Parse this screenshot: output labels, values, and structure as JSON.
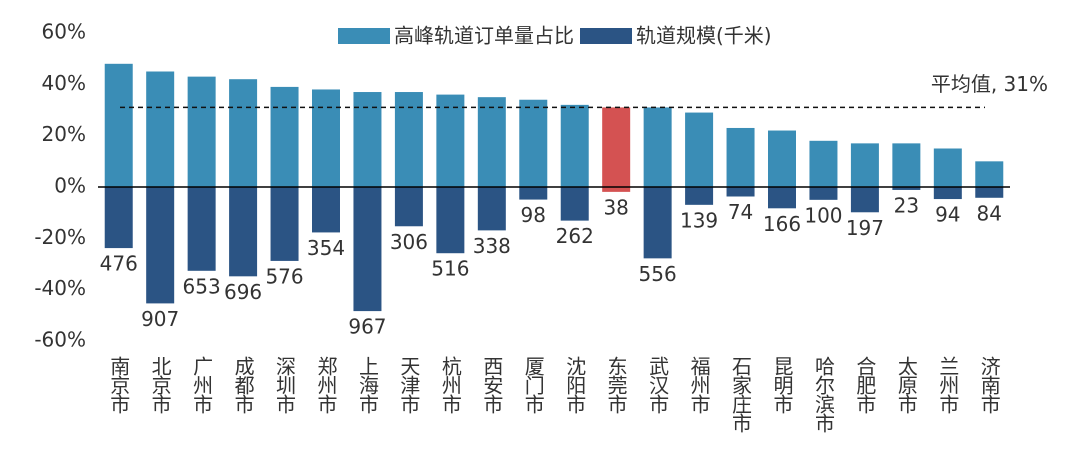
{
  "chart_data": {
    "type": "bar",
    "categories": [
      "南京市",
      "北京市",
      "广州市",
      "成都市",
      "深圳市",
      "郑州市",
      "上海市",
      "天津市",
      "杭州市",
      "西安市",
      "厦门市",
      "沈阳市",
      "东莞市",
      "武汉市",
      "福州市",
      "石家庄市",
      "昆明市",
      "哈尔滨市",
      "合肥市",
      "太原市",
      "兰州市",
      "济南市"
    ],
    "series": [
      {
        "name": "高峰轨道订单量占比",
        "color": "#3a8db6",
        "colors": [
          "#3a8db6",
          "#3a8db6",
          "#3a8db6",
          "#3a8db6",
          "#3a8db6",
          "#3a8db6",
          "#3a8db6",
          "#3a8db6",
          "#3a8db6",
          "#3a8db6",
          "#3a8db6",
          "#3a8db6",
          "#d45252",
          "#3a8db6",
          "#3a8db6",
          "#3a8db6",
          "#3a8db6",
          "#3a8db6",
          "#3a8db6",
          "#3a8db6",
          "#3a8db6",
          "#3a8db6"
        ],
        "values": [
          48,
          45,
          43,
          42,
          39,
          38,
          37,
          37,
          36,
          35,
          34,
          32,
          31,
          31,
          29,
          23,
          22,
          18,
          17,
          17,
          15,
          10
        ]
      },
      {
        "name": "轨道规模(千米)",
        "color": "#2b5484",
        "axis": "y2",
        "colors": [
          "#2b5484",
          "#2b5484",
          "#2b5484",
          "#2b5484",
          "#2b5484",
          "#2b5484",
          "#2b5484",
          "#2b5484",
          "#2b5484",
          "#2b5484",
          "#2b5484",
          "#2b5484",
          "#d45252",
          "#2b5484",
          "#2b5484",
          "#2b5484",
          "#2b5484",
          "#2b5484",
          "#2b5484",
          "#2b5484",
          "#2b5484",
          "#2b5484"
        ],
        "values": [
          476,
          907,
          653,
          696,
          576,
          354,
          967,
          306,
          516,
          338,
          98,
          262,
          38,
          556,
          139,
          74,
          166,
          100,
          197,
          23,
          94,
          84
        ]
      }
    ],
    "ylim": [
      -60,
      60
    ],
    "yticks": [
      {
        "value": -60,
        "label": "-60%"
      },
      {
        "value": -40,
        "label": "-40%"
      },
      {
        "value": -20,
        "label": "-20%"
      },
      {
        "value": 0,
        "label": "0%"
      },
      {
        "value": 20,
        "label": "20%"
      },
      {
        "value": 40,
        "label": "40%"
      },
      {
        "value": 60,
        "label": "60%"
      }
    ],
    "y2lim": [
      1200,
      -1200
    ],
    "reference_line": {
      "value": 31,
      "label": "平均值, 31%"
    },
    "legend": "top"
  }
}
